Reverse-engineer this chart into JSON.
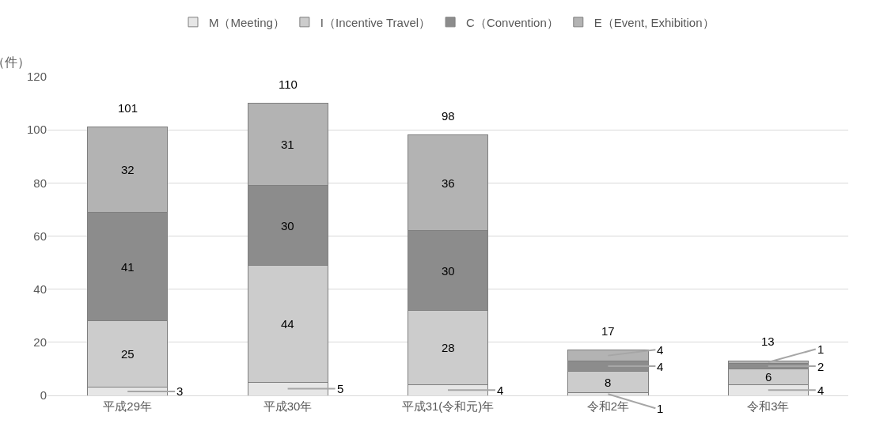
{
  "chart_data": {
    "type": "bar",
    "stacked": true,
    "ylabel": "（件）",
    "categories": [
      "平成29年",
      "平成30年",
      "平成31(令和元)年",
      "令和2年",
      "令和3年"
    ],
    "series": [
      {
        "name": "M（Meeting）",
        "color": "#e6e6e6",
        "values": [
          3,
          5,
          4,
          1,
          4
        ]
      },
      {
        "name": "I（Incentive Travel）",
        "color": "#cccccc",
        "values": [
          25,
          44,
          28,
          8,
          6
        ]
      },
      {
        "name": "C（Convention）",
        "color": "#8c8c8c",
        "values": [
          41,
          30,
          30,
          4,
          2
        ]
      },
      {
        "name": "E（Event, Exhibition）",
        "color": "#b3b3b3",
        "values": [
          32,
          31,
          36,
          4,
          1
        ]
      }
    ],
    "totals": [
      "101",
      "110",
      "98",
      "17",
      "13"
    ],
    "data_labels": true,
    "ylim": [
      0,
      120
    ],
    "yticks": [
      0,
      20,
      40,
      60,
      80,
      100,
      120
    ],
    "grid": "y",
    "legend": "top"
  }
}
